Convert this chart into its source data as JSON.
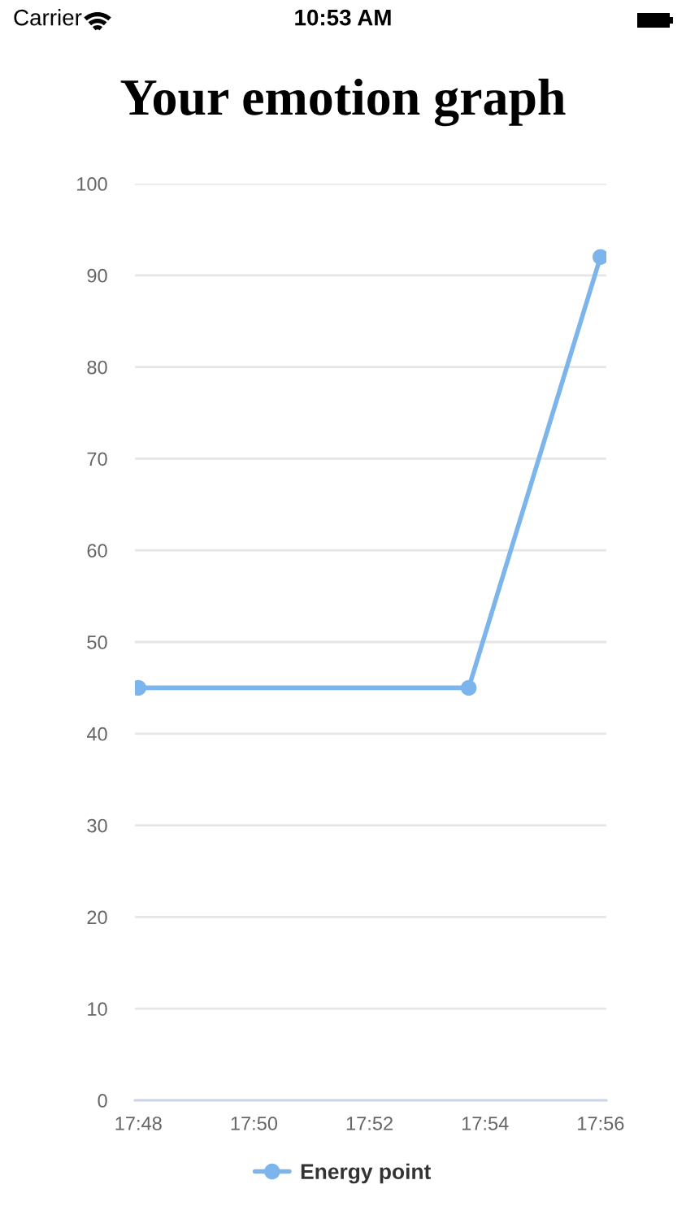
{
  "chart_data": {
    "type": "line",
    "title": "Your emotion graph",
    "x": [
      17.8,
      17.8953,
      17.9333
    ],
    "series": [
      {
        "name": "Energy point",
        "color": "#7cb5ec",
        "values": [
          45,
          45,
          92
        ]
      }
    ],
    "xlim": [
      17.799,
      17.935
    ],
    "xticks": [
      {
        "value": 17.8,
        "label": "17:48"
      },
      {
        "value": 17.83333,
        "label": "17:50"
      },
      {
        "value": 17.86667,
        "label": "17:52"
      },
      {
        "value": 17.9,
        "label": "17:54"
      },
      {
        "value": 17.93333,
        "label": "17:56"
      }
    ],
    "ylim": [
      0,
      100
    ],
    "yticks": [
      0,
      10,
      20,
      30,
      40,
      50,
      60,
      70,
      80,
      90,
      100
    ],
    "grid": "y",
    "legend": "bottom",
    "marker": "circle",
    "line_style": "solid",
    "annotations": [
      "Carrier",
      "10:53 AM"
    ]
  }
}
